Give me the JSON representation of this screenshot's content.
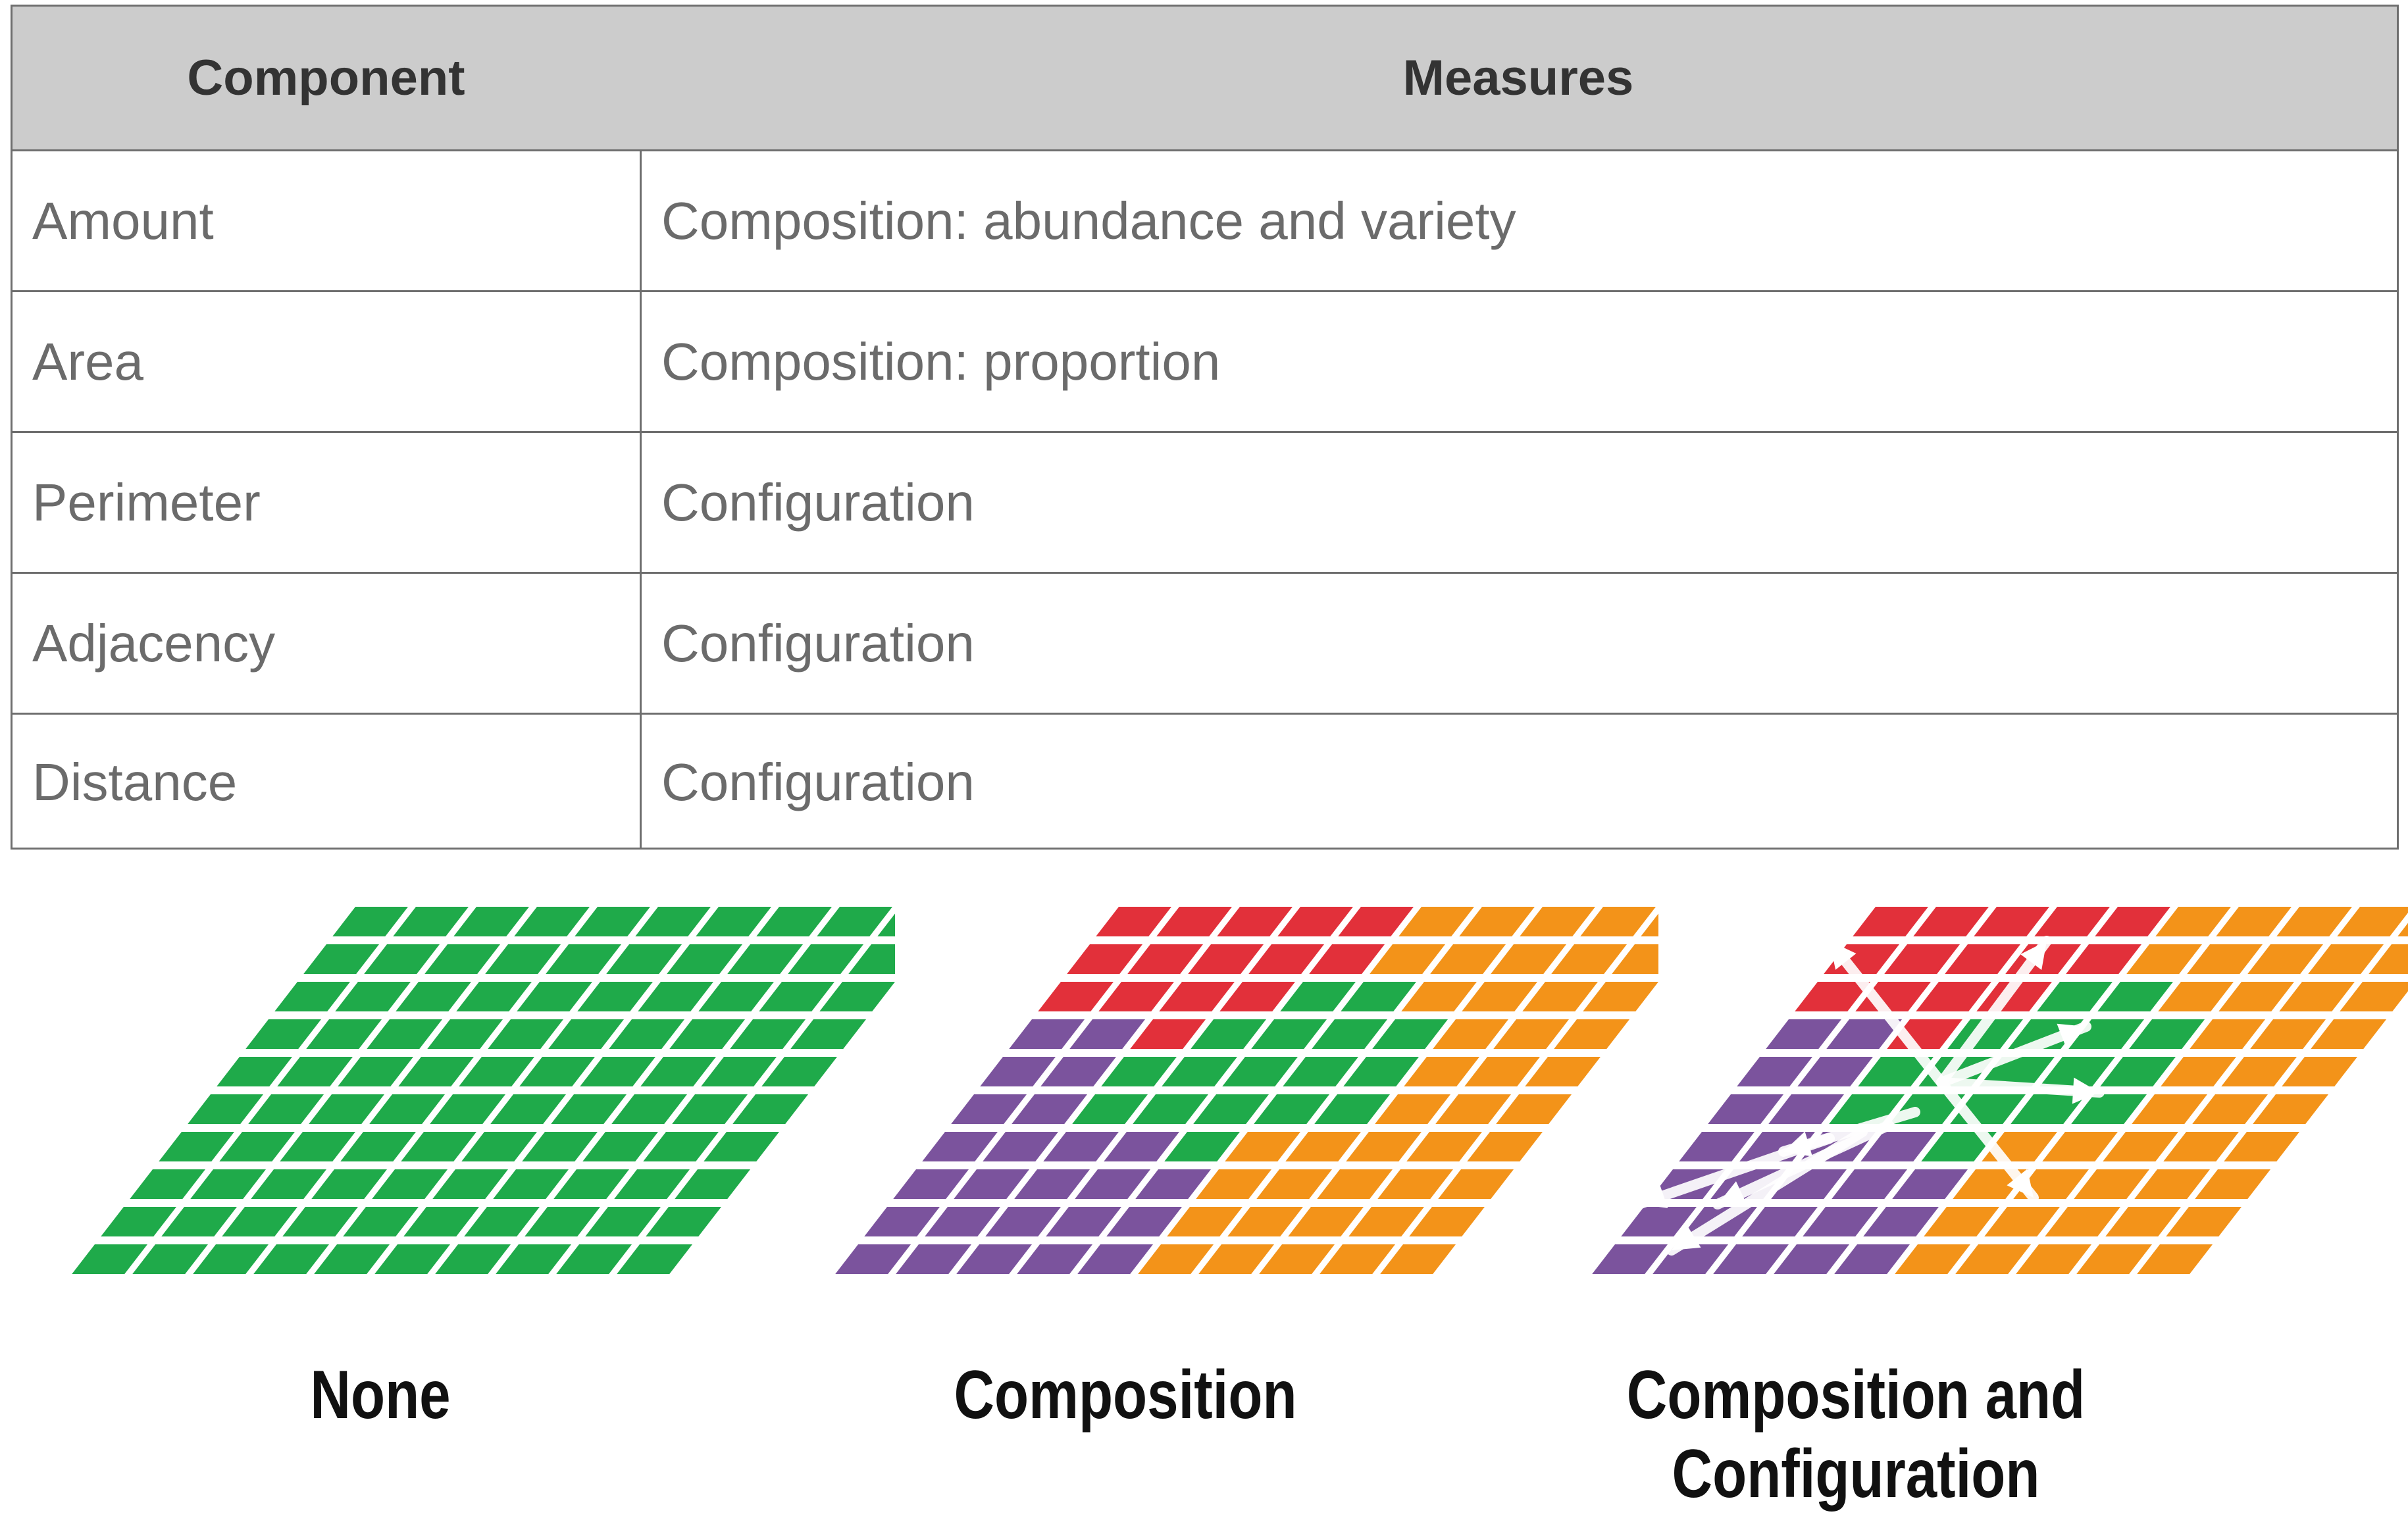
{
  "table": {
    "headers": {
      "component": "Component",
      "measures": "Measures"
    },
    "rows": [
      {
        "component": "Amount",
        "measures": "Composition: abundance and variety"
      },
      {
        "component": "Area",
        "measures": "Composition: proportion"
      },
      {
        "component": "Perimeter",
        "measures": "Configuration"
      },
      {
        "component": "Adjacency",
        "measures": "Configuration"
      },
      {
        "component": "Distance",
        "measures": "Configuration"
      }
    ]
  },
  "diagrams": {
    "captions": [
      "None",
      "Composition",
      "Composition and",
      "Configuration"
    ],
    "colors": {
      "green": "#1faa4a",
      "red": "#e2303a",
      "orange": "#f39319",
      "purple": "#7b539d"
    }
  }
}
